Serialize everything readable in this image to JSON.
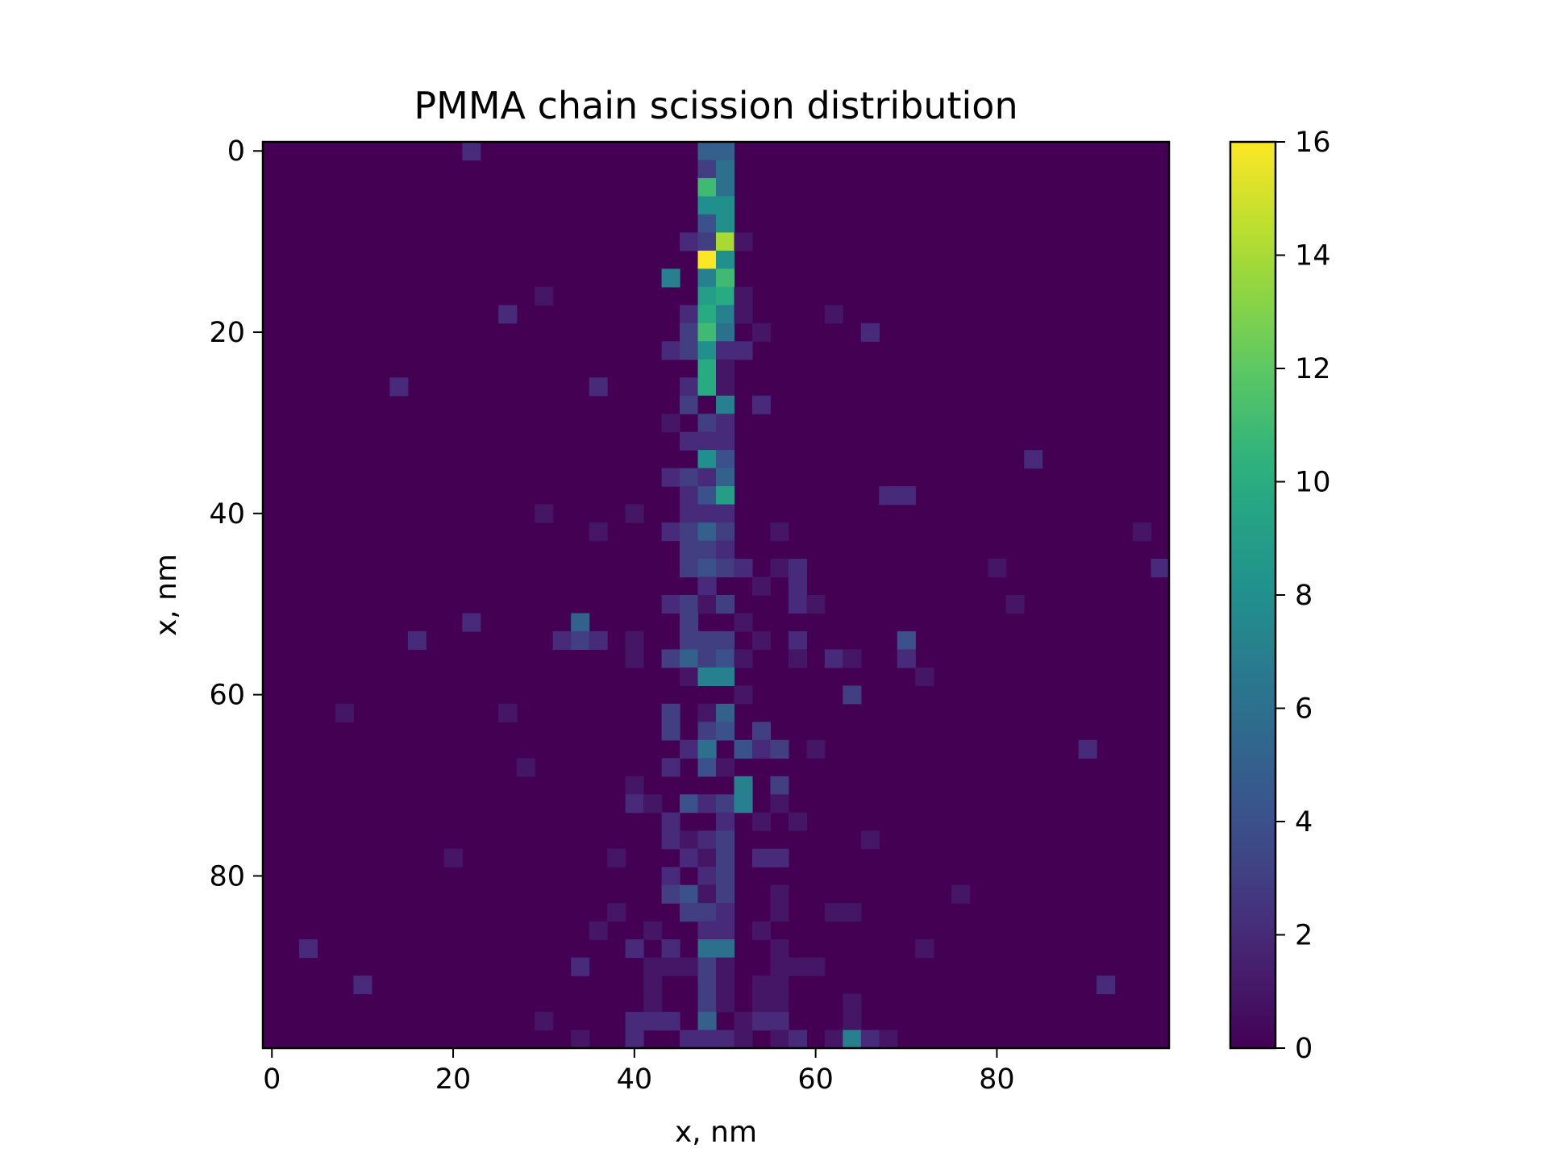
{
  "chart_data": {
    "type": "heatmap",
    "title": "PMMA chain scission distribution",
    "xlabel": "x, nm",
    "ylabel": "x, nm",
    "xlim": [
      -1,
      99
    ],
    "ylim": [
      99,
      -1
    ],
    "x_ticks": [
      0,
      20,
      40,
      60,
      80
    ],
    "y_ticks": [
      0,
      20,
      40,
      60,
      80
    ],
    "x_tick_labels": [
      "0",
      "20",
      "40",
      "60",
      "80"
    ],
    "y_tick_labels": [
      "0",
      "20",
      "40",
      "60",
      "80"
    ],
    "grid": false,
    "bin_size_nm": 2,
    "colormap": "viridis",
    "background_value": 0,
    "colorbar": {
      "min": 0,
      "max": 16,
      "ticks": [
        0,
        2,
        4,
        6,
        8,
        10,
        12,
        14,
        16
      ],
      "tick_labels": [
        "0",
        "2",
        "4",
        "6",
        "8",
        "10",
        "12",
        "14",
        "16"
      ]
    },
    "cells_description": "Each cell is [x_nm, y_nm, value]; all other cells are 0",
    "cells": [
      [
        22,
        0,
        2
      ],
      [
        48,
        0,
        5
      ],
      [
        50,
        0,
        5
      ],
      [
        48,
        2,
        3
      ],
      [
        50,
        2,
        6
      ],
      [
        48,
        4,
        11
      ],
      [
        50,
        4,
        6
      ],
      [
        48,
        6,
        8
      ],
      [
        50,
        6,
        8
      ],
      [
        48,
        8,
        4
      ],
      [
        50,
        8,
        8
      ],
      [
        46,
        10,
        2
      ],
      [
        48,
        10,
        3
      ],
      [
        50,
        10,
        14
      ],
      [
        52,
        10,
        1
      ],
      [
        48,
        12,
        16
      ],
      [
        50,
        12,
        8
      ],
      [
        44,
        14,
        7
      ],
      [
        48,
        14,
        7
      ],
      [
        50,
        14,
        11
      ],
      [
        30,
        16,
        1
      ],
      [
        48,
        16,
        9
      ],
      [
        50,
        16,
        10
      ],
      [
        52,
        16,
        1
      ],
      [
        26,
        18,
        2
      ],
      [
        46,
        18,
        2
      ],
      [
        48,
        18,
        10
      ],
      [
        50,
        18,
        7
      ],
      [
        52,
        18,
        1
      ],
      [
        62,
        18,
        1
      ],
      [
        46,
        20,
        3
      ],
      [
        48,
        20,
        11
      ],
      [
        50,
        20,
        6
      ],
      [
        54,
        20,
        1
      ],
      [
        66,
        20,
        2
      ],
      [
        44,
        22,
        2
      ],
      [
        46,
        22,
        3
      ],
      [
        48,
        22,
        8
      ],
      [
        50,
        22,
        2
      ],
      [
        52,
        22,
        2
      ],
      [
        48,
        24,
        10
      ],
      [
        50,
        24,
        1
      ],
      [
        14,
        26,
        2
      ],
      [
        36,
        26,
        2
      ],
      [
        46,
        26,
        2
      ],
      [
        48,
        26,
        10
      ],
      [
        50,
        26,
        1
      ],
      [
        46,
        28,
        3
      ],
      [
        48,
        28,
        0
      ],
      [
        50,
        28,
        7
      ],
      [
        54,
        28,
        2
      ],
      [
        44,
        30,
        1
      ],
      [
        48,
        30,
        3
      ],
      [
        50,
        30,
        2
      ],
      [
        46,
        32,
        2
      ],
      [
        48,
        32,
        2
      ],
      [
        50,
        32,
        2
      ],
      [
        48,
        34,
        8
      ],
      [
        50,
        34,
        4
      ],
      [
        84,
        34,
        2
      ],
      [
        44,
        36,
        2
      ],
      [
        46,
        36,
        3
      ],
      [
        48,
        36,
        2
      ],
      [
        50,
        36,
        5
      ],
      [
        46,
        38,
        2
      ],
      [
        48,
        38,
        4
      ],
      [
        50,
        38,
        9
      ],
      [
        68,
        38,
        2
      ],
      [
        70,
        38,
        2
      ],
      [
        30,
        40,
        1
      ],
      [
        40,
        40,
        1
      ],
      [
        46,
        40,
        2
      ],
      [
        48,
        40,
        2
      ],
      [
        50,
        40,
        2
      ],
      [
        36,
        42,
        1
      ],
      [
        44,
        42,
        2
      ],
      [
        46,
        42,
        3
      ],
      [
        48,
        42,
        5
      ],
      [
        50,
        42,
        3
      ],
      [
        56,
        42,
        1
      ],
      [
        96,
        42,
        1
      ],
      [
        46,
        44,
        3
      ],
      [
        48,
        44,
        3
      ],
      [
        50,
        44,
        2
      ],
      [
        46,
        46,
        3
      ],
      [
        48,
        46,
        4
      ],
      [
        50,
        46,
        3
      ],
      [
        52,
        46,
        2
      ],
      [
        56,
        46,
        1
      ],
      [
        58,
        46,
        2
      ],
      [
        80,
        46,
        1
      ],
      [
        98,
        46,
        2
      ],
      [
        48,
        48,
        2
      ],
      [
        54,
        48,
        1
      ],
      [
        58,
        48,
        2
      ],
      [
        44,
        50,
        2
      ],
      [
        46,
        50,
        3
      ],
      [
        48,
        50,
        1
      ],
      [
        50,
        50,
        3
      ],
      [
        58,
        50,
        2
      ],
      [
        60,
        50,
        1
      ],
      [
        82,
        50,
        1
      ],
      [
        22,
        52,
        2
      ],
      [
        34,
        52,
        5
      ],
      [
        46,
        52,
        3
      ],
      [
        52,
        52,
        1
      ],
      [
        16,
        54,
        2
      ],
      [
        32,
        54,
        2
      ],
      [
        34,
        54,
        3
      ],
      [
        36,
        54,
        2
      ],
      [
        40,
        54,
        1
      ],
      [
        46,
        54,
        3
      ],
      [
        48,
        54,
        3
      ],
      [
        50,
        54,
        3
      ],
      [
        54,
        54,
        1
      ],
      [
        58,
        54,
        2
      ],
      [
        70,
        54,
        4
      ],
      [
        40,
        56,
        1
      ],
      [
        44,
        56,
        3
      ],
      [
        46,
        56,
        5
      ],
      [
        48,
        56,
        3
      ],
      [
        50,
        56,
        4
      ],
      [
        52,
        56,
        1
      ],
      [
        58,
        56,
        1
      ],
      [
        62,
        56,
        2
      ],
      [
        64,
        56,
        1
      ],
      [
        70,
        56,
        2
      ],
      [
        46,
        58,
        1
      ],
      [
        48,
        58,
        7
      ],
      [
        50,
        58,
        7
      ],
      [
        72,
        58,
        1
      ],
      [
        52,
        60,
        1
      ],
      [
        64,
        60,
        3
      ],
      [
        8,
        62,
        1
      ],
      [
        26,
        62,
        1
      ],
      [
        44,
        62,
        3
      ],
      [
        48,
        62,
        1
      ],
      [
        50,
        62,
        5
      ],
      [
        44,
        64,
        3
      ],
      [
        48,
        64,
        3
      ],
      [
        50,
        64,
        4
      ],
      [
        54,
        64,
        3
      ],
      [
        46,
        66,
        2
      ],
      [
        48,
        66,
        6
      ],
      [
        52,
        66,
        4
      ],
      [
        54,
        66,
        2
      ],
      [
        56,
        66,
        3
      ],
      [
        60,
        66,
        1
      ],
      [
        90,
        66,
        2
      ],
      [
        28,
        68,
        1
      ],
      [
        44,
        68,
        2
      ],
      [
        48,
        68,
        4
      ],
      [
        50,
        68,
        1
      ],
      [
        40,
        70,
        1
      ],
      [
        52,
        70,
        7
      ],
      [
        56,
        70,
        3
      ],
      [
        40,
        72,
        2
      ],
      [
        42,
        72,
        1
      ],
      [
        46,
        72,
        4
      ],
      [
        48,
        72,
        2
      ],
      [
        50,
        72,
        3
      ],
      [
        52,
        72,
        7
      ],
      [
        56,
        72,
        1
      ],
      [
        44,
        74,
        2
      ],
      [
        50,
        74,
        2
      ],
      [
        54,
        74,
        1
      ],
      [
        58,
        74,
        1
      ],
      [
        44,
        76,
        2
      ],
      [
        46,
        76,
        1
      ],
      [
        48,
        76,
        2
      ],
      [
        50,
        76,
        3
      ],
      [
        66,
        76,
        1
      ],
      [
        20,
        78,
        1
      ],
      [
        38,
        78,
        1
      ],
      [
        46,
        78,
        2
      ],
      [
        48,
        78,
        1
      ],
      [
        50,
        78,
        3
      ],
      [
        54,
        78,
        2
      ],
      [
        56,
        78,
        2
      ],
      [
        44,
        80,
        2
      ],
      [
        48,
        80,
        2
      ],
      [
        50,
        80,
        3
      ],
      [
        44,
        82,
        3
      ],
      [
        46,
        82,
        4
      ],
      [
        48,
        82,
        1
      ],
      [
        50,
        82,
        3
      ],
      [
        56,
        82,
        1
      ],
      [
        76,
        82,
        1
      ],
      [
        38,
        84,
        1
      ],
      [
        46,
        84,
        3
      ],
      [
        48,
        84,
        3
      ],
      [
        50,
        84,
        2
      ],
      [
        56,
        84,
        1
      ],
      [
        62,
        84,
        1
      ],
      [
        64,
        84,
        1
      ],
      [
        36,
        86,
        1
      ],
      [
        42,
        86,
        1
      ],
      [
        48,
        86,
        2
      ],
      [
        50,
        86,
        2
      ],
      [
        54,
        86,
        1
      ],
      [
        4,
        88,
        2
      ],
      [
        40,
        88,
        2
      ],
      [
        44,
        88,
        2
      ],
      [
        48,
        88,
        6
      ],
      [
        50,
        88,
        6
      ],
      [
        56,
        88,
        1
      ],
      [
        72,
        88,
        1
      ],
      [
        34,
        90,
        2
      ],
      [
        42,
        90,
        1
      ],
      [
        44,
        90,
        1
      ],
      [
        46,
        90,
        1
      ],
      [
        48,
        90,
        3
      ],
      [
        50,
        90,
        1
      ],
      [
        56,
        90,
        1
      ],
      [
        58,
        90,
        1
      ],
      [
        60,
        90,
        1
      ],
      [
        10,
        92,
        2
      ],
      [
        42,
        92,
        1
      ],
      [
        48,
        92,
        3
      ],
      [
        50,
        92,
        1
      ],
      [
        54,
        92,
        1
      ],
      [
        56,
        92,
        1
      ],
      [
        92,
        92,
        2
      ],
      [
        42,
        94,
        1
      ],
      [
        48,
        94,
        3
      ],
      [
        50,
        94,
        1
      ],
      [
        54,
        94,
        1
      ],
      [
        56,
        94,
        1
      ],
      [
        64,
        94,
        1
      ],
      [
        30,
        96,
        1
      ],
      [
        40,
        96,
        2
      ],
      [
        42,
        96,
        2
      ],
      [
        44,
        96,
        2
      ],
      [
        48,
        96,
        5
      ],
      [
        52,
        96,
        1
      ],
      [
        54,
        96,
        2
      ],
      [
        56,
        96,
        2
      ],
      [
        64,
        96,
        1
      ],
      [
        34,
        98,
        1
      ],
      [
        40,
        98,
        2
      ],
      [
        46,
        98,
        2
      ],
      [
        48,
        98,
        2
      ],
      [
        50,
        98,
        2
      ],
      [
        52,
        98,
        1
      ],
      [
        56,
        98,
        1
      ],
      [
        58,
        98,
        2
      ],
      [
        62,
        98,
        1
      ],
      [
        64,
        98,
        7
      ],
      [
        66,
        98,
        2
      ],
      [
        68,
        98,
        1
      ]
    ]
  }
}
